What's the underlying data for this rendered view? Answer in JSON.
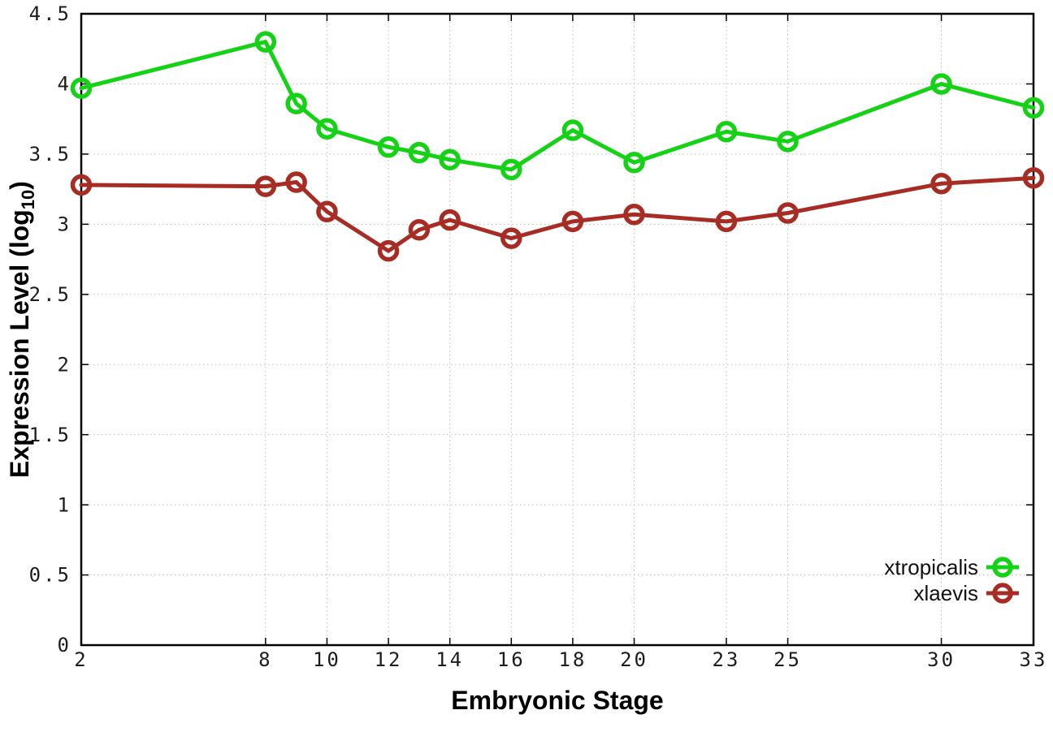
{
  "chart_data": {
    "type": "line",
    "title": "",
    "xlabel": "Embryonic Stage",
    "ylabel": "Expression Level (log10)",
    "ylabel_parts": {
      "prefix": "Expression Level (log",
      "sub": "10",
      "suffix": ")"
    },
    "x": [
      2,
      8,
      9,
      10,
      12,
      13,
      14,
      16,
      18,
      20,
      23,
      25,
      30,
      33
    ],
    "series": [
      {
        "name": "xtropicalis",
        "color": "#16d216",
        "values": [
          3.97,
          4.3,
          3.86,
          3.68,
          3.55,
          3.51,
          3.46,
          3.39,
          3.67,
          3.44,
          3.66,
          3.59,
          4.0,
          3.83
        ]
      },
      {
        "name": "xlaevis",
        "color": "#a72d24",
        "values": [
          3.28,
          3.27,
          3.3,
          3.09,
          2.81,
          2.96,
          3.03,
          2.9,
          3.02,
          3.07,
          3.02,
          3.08,
          3.29,
          3.33
        ]
      }
    ],
    "xticks": [
      2,
      8,
      10,
      12,
      14,
      16,
      18,
      20,
      23,
      25,
      30,
      33
    ],
    "yticks": [
      0,
      0.5,
      1,
      1.5,
      2,
      2.5,
      3,
      3.5,
      4,
      4.5
    ],
    "xlim": [
      2,
      33
    ],
    "ylim": [
      0,
      4.5
    ],
    "grid": true,
    "legend_position": "bottom-right",
    "marker": "open-circle",
    "colors": {
      "border": "#000000",
      "gridline": "#bdbdbd",
      "tick_text": "#1c1c1c"
    }
  }
}
